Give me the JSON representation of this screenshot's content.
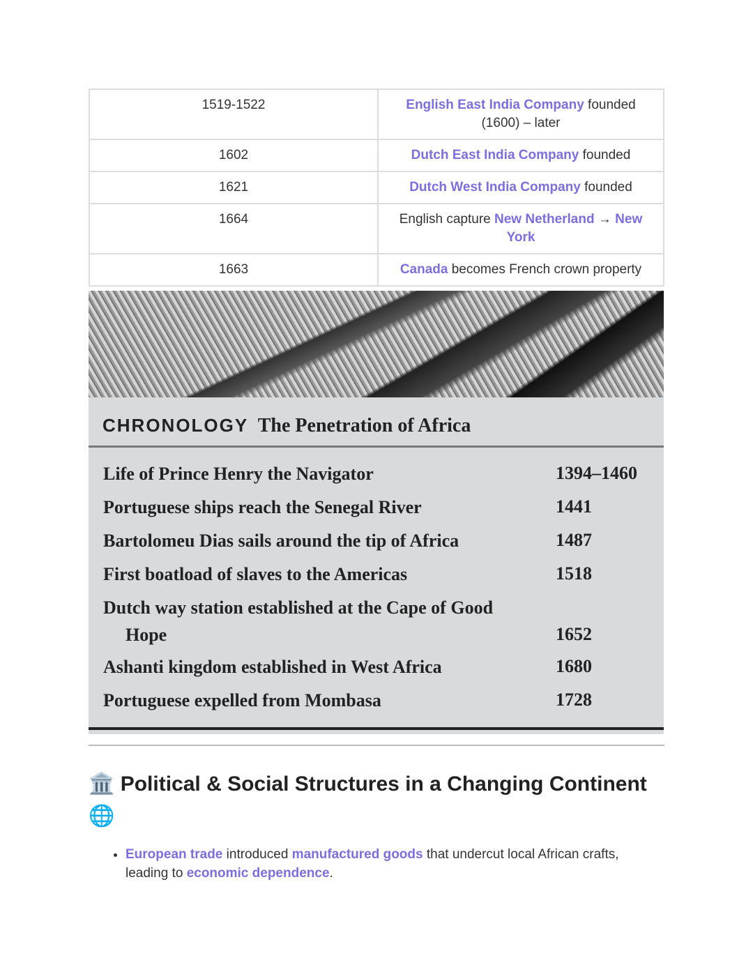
{
  "table": [
    {
      "date": "1519-1522",
      "parts": [
        {
          "t": "English East India Company",
          "hl": true
        },
        {
          "t": " founded (1600) – later",
          "hl": false
        }
      ]
    },
    {
      "date": "1602",
      "parts": [
        {
          "t": "Dutch East India Company",
          "hl": true
        },
        {
          "t": " founded",
          "hl": false
        }
      ]
    },
    {
      "date": "1621",
      "parts": [
        {
          "t": "Dutch West India Company",
          "hl": true
        },
        {
          "t": " founded",
          "hl": false
        }
      ]
    },
    {
      "date": "1664",
      "parts": [
        {
          "t": "English capture ",
          "hl": false
        },
        {
          "t": "New Netherland",
          "hl": true
        },
        {
          "t": " → ",
          "hl": false
        },
        {
          "t": "New York",
          "hl": true
        }
      ]
    },
    {
      "date": "1663",
      "parts": [
        {
          "t": "Canada",
          "hl": true
        },
        {
          "t": " becomes French crown property",
          "hl": false
        }
      ]
    }
  ],
  "chronology": {
    "label": "CHRONOLOGY",
    "title": "The Penetration of Africa",
    "events": [
      {
        "event": "Life of Prince Henry the Navigator",
        "year": "1394–1460"
      },
      {
        "event": "Portuguese ships reach the Senegal River",
        "year": "1441"
      },
      {
        "event": "Bartolomeu Dias sails around the tip of Africa",
        "year": "1487"
      },
      {
        "event": "First boatload of slaves to the Americas",
        "year": "1518"
      },
      {
        "event": "Dutch way station established at the Cape of Good Hope",
        "year": "1652"
      },
      {
        "event": "Ashanti kingdom established in West Africa",
        "year": "1680"
      },
      {
        "event": "Portuguese expelled from Mombasa",
        "year": "1728"
      }
    ]
  },
  "section": {
    "icon": "🏛️",
    "title": "Political & Social Structures in a Changing Continent",
    "icon2": "🌐"
  },
  "bullets": [
    [
      {
        "t": "European trade",
        "hl": true
      },
      {
        "t": " introduced ",
        "hl": false
      },
      {
        "t": "manufactured goods",
        "hl": true
      },
      {
        "t": " that undercut local African crafts, leading to ",
        "hl": false
      },
      {
        "t": "economic dependence",
        "hl": true
      },
      {
        "t": ".",
        "hl": false
      }
    ]
  ],
  "colors": {
    "accent": "#7b6fe0"
  }
}
